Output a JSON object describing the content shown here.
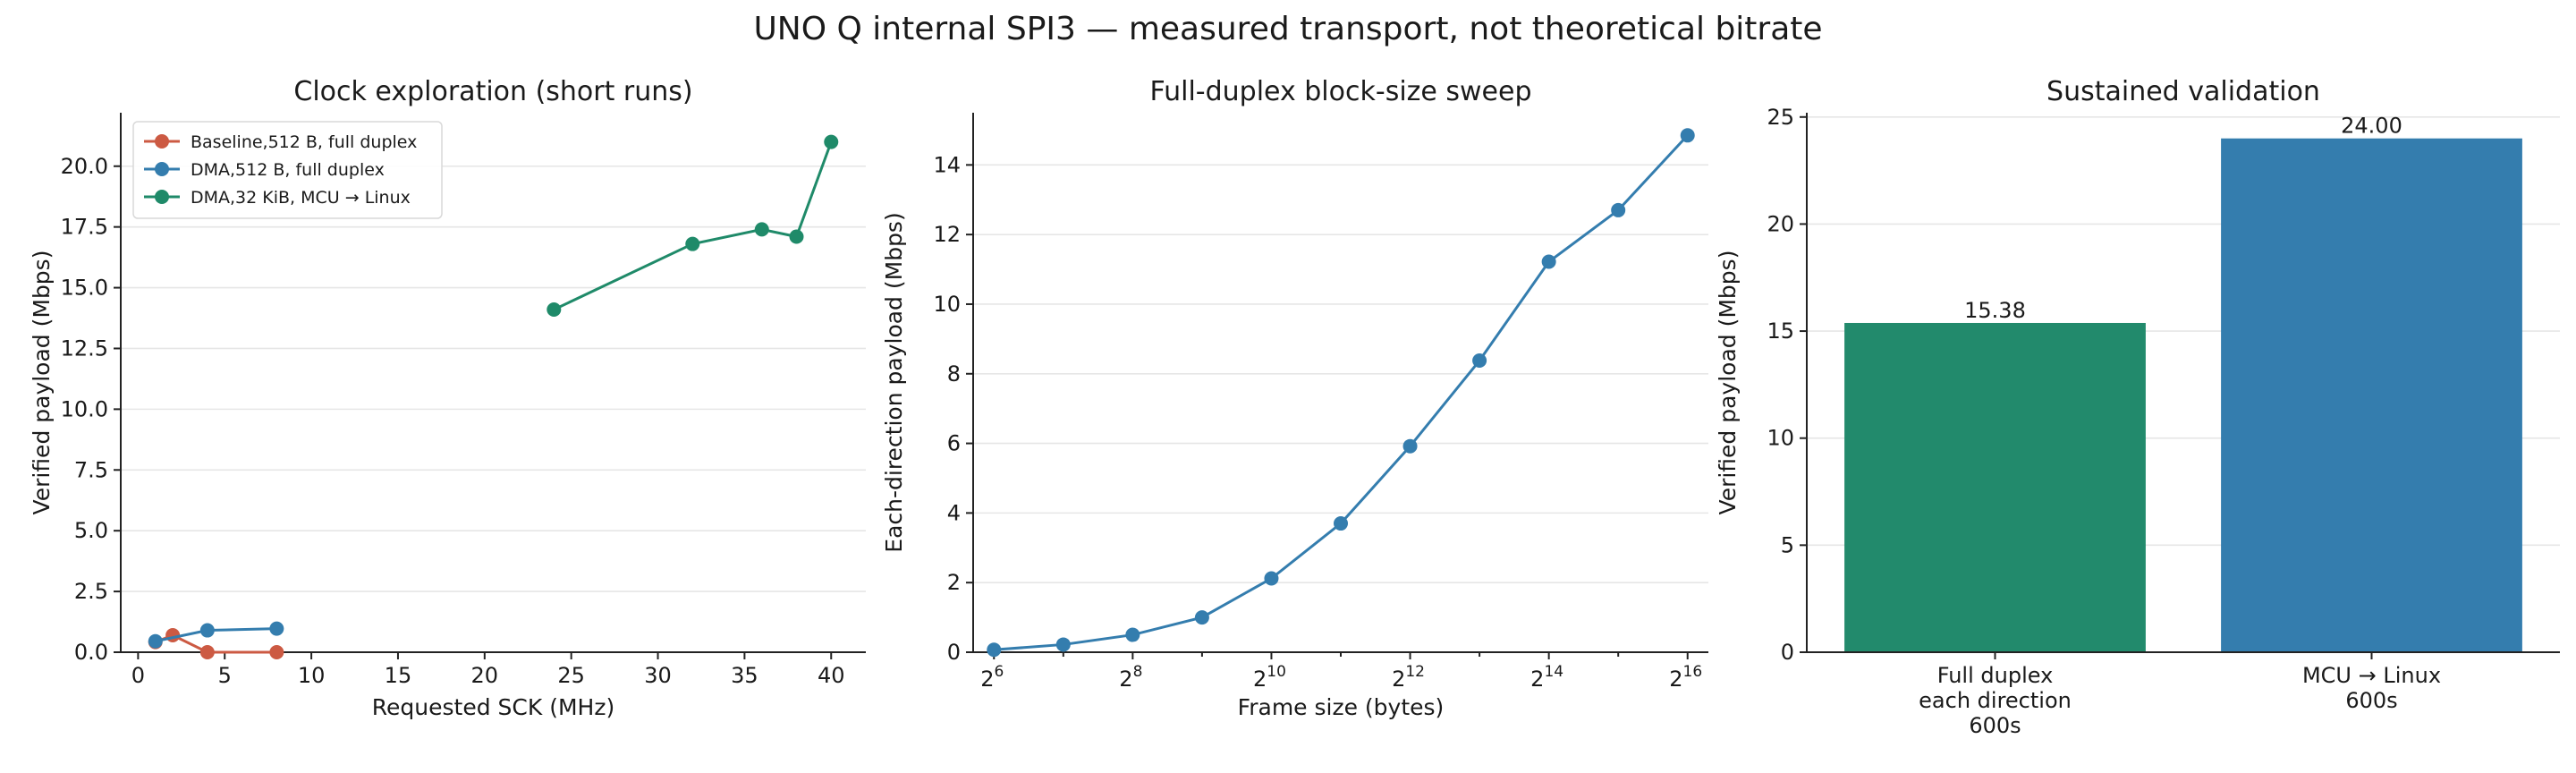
{
  "figure_title": "UNO Q internal SPI3 — measured transport, not theoretical bitrate",
  "colors": {
    "baseline": "#cc5a43",
    "dma": "#347dae",
    "green": "#1f8a69",
    "bar_full_duplex": "#228a6c",
    "bar_mcu_linux": "#347dae"
  },
  "chart_data": [
    {
      "type": "line",
      "title": "Clock exploration (short runs)",
      "xlabel": "Requested SCK (MHz)",
      "ylabel": "Verified payload (Mbps)",
      "xlim": [
        -1,
        42
      ],
      "ylim": [
        0,
        22.2
      ],
      "xticks": [
        "0",
        "5",
        "10",
        "15",
        "20",
        "25",
        "30",
        "35",
        "40"
      ],
      "yticks": [
        "0.0",
        "2.5",
        "5.0",
        "7.5",
        "10.0",
        "12.5",
        "15.0",
        "17.5",
        "20.0"
      ],
      "grid": "y",
      "legend_position": "upper-left",
      "series": [
        {
          "name": "Baseline,512 B, full duplex",
          "color": "#cc5a43",
          "x": [
            1,
            2,
            4,
            8
          ],
          "y": [
            0.42,
            0.7,
            0.0,
            0.0
          ]
        },
        {
          "name": "DMA,512 B, full duplex",
          "color": "#347dae",
          "x": [
            1,
            4,
            8
          ],
          "y": [
            0.45,
            0.9,
            0.97
          ]
        },
        {
          "name": "DMA,32 KiB, MCU → Linux",
          "color": "#1f8a69",
          "x": [
            24,
            32,
            36,
            38,
            40
          ],
          "y": [
            14.1,
            16.8,
            17.4,
            17.1,
            21.0
          ]
        }
      ]
    },
    {
      "type": "line",
      "title": "Full-duplex block-size sweep",
      "xlabel": "Frame size (bytes)",
      "ylabel": "Each-direction payload (Mbps)",
      "x_scale": "log2",
      "xlim_exp": [
        5.7,
        16.3
      ],
      "ylim": [
        0,
        15.5
      ],
      "xticks": [
        {
          "base": "2",
          "exp": "6"
        },
        {
          "base": "2",
          "exp": "8"
        },
        {
          "base": "2",
          "exp": "10"
        },
        {
          "base": "2",
          "exp": "12"
        },
        {
          "base": "2",
          "exp": "14"
        },
        {
          "base": "2",
          "exp": "16"
        }
      ],
      "yticks": [
        "0",
        "2",
        "4",
        "6",
        "8",
        "10",
        "12",
        "14"
      ],
      "grid": "y",
      "series": [
        {
          "color": "#347dae",
          "x": [
            64,
            128,
            256,
            512,
            1024,
            2048,
            4096,
            8192,
            16384,
            32768,
            65536
          ],
          "y": [
            0.07,
            0.22,
            0.5,
            1.0,
            2.12,
            3.7,
            5.92,
            8.38,
            11.22,
            12.7,
            14.85
          ]
        }
      ]
    },
    {
      "type": "bar",
      "title": "Sustained validation",
      "ylabel": "Verified payload (Mbps)",
      "ylim": [
        0,
        25.2
      ],
      "yticks": [
        "0",
        "5",
        "10",
        "15",
        "20",
        "25"
      ],
      "grid": "y",
      "categories": [
        [
          "Full duplex",
          "each direction",
          "600s"
        ],
        [
          "MCU → Linux",
          "600s"
        ]
      ],
      "values": [
        15.38,
        24.0
      ],
      "value_labels": [
        "15.38",
        "24.00"
      ],
      "colors": [
        "#228a6c",
        "#347dae"
      ]
    }
  ]
}
